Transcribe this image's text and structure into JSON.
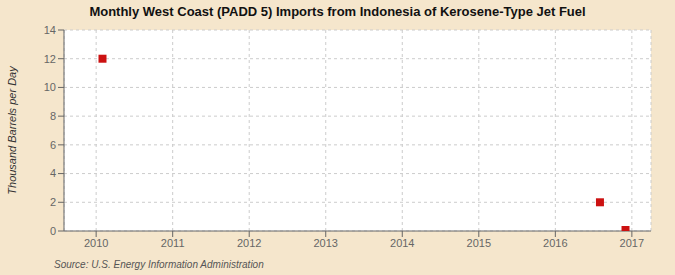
{
  "chart_data": {
    "type": "scatter",
    "title": "Monthly West Coast (PADD 5) Imports from Indonesia of Kerosene-Type Jet Fuel",
    "ylabel": "Thousand Barrels per Day",
    "annotation": "Source: U.S. Energy Information Administration",
    "x": [
      2010.083,
      2016.583,
      2016.917
    ],
    "values": [
      12.0,
      2.0,
      0.07
    ],
    "color": "#cc1111",
    "marker": "square",
    "xlim": [
      2009.58,
      2017.25
    ],
    "xticks": [
      2010,
      2011,
      2012,
      2013,
      2014,
      2015,
      2016,
      2017
    ],
    "ylim": [
      0,
      14
    ],
    "yticks": [
      0,
      2,
      4,
      6,
      8,
      10,
      12,
      14
    ],
    "grid": true
  }
}
